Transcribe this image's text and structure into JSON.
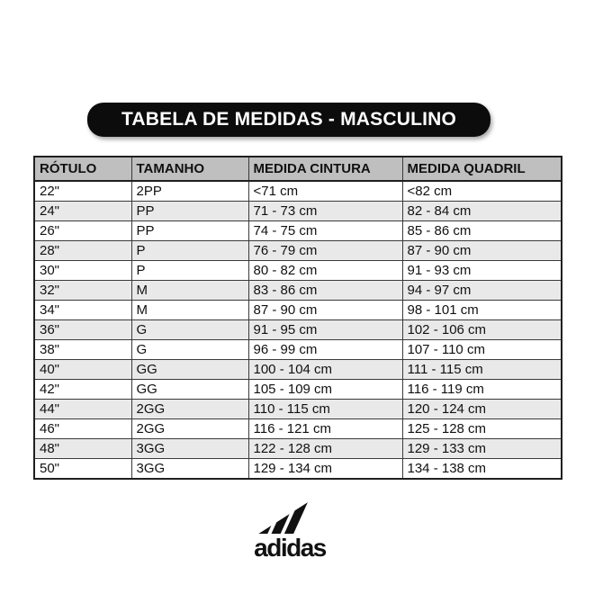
{
  "banner": {
    "title": "TABELA DE MEDIDAS - MASCULINO"
  },
  "chart_data": {
    "type": "table",
    "title": "TABELA DE MEDIDAS - MASCULINO",
    "columns": [
      "RÓTULO",
      "TAMANHO",
      "MEDIDA CINTURA",
      "MEDIDA QUADRIL"
    ],
    "rows": [
      [
        "22\"",
        "2PP",
        "<71 cm",
        "<82 cm"
      ],
      [
        "24\"",
        "PP",
        "71 - 73 cm",
        "82 - 84 cm"
      ],
      [
        "26\"",
        "PP",
        "74 - 75 cm",
        "85 - 86 cm"
      ],
      [
        "28\"",
        "P",
        "76 - 79 cm",
        "87 - 90 cm"
      ],
      [
        "30\"",
        "P",
        "80 - 82 cm",
        "91 - 93 cm"
      ],
      [
        "32\"",
        "M",
        "83 - 86 cm",
        "94 - 97 cm"
      ],
      [
        "34\"",
        "M",
        "87 - 90 cm",
        "98 - 101 cm"
      ],
      [
        "36\"",
        "G",
        "91 - 95 cm",
        "102 - 106 cm"
      ],
      [
        "38\"",
        "G",
        "96 - 99 cm",
        "107 - 110 cm"
      ],
      [
        "40\"",
        "GG",
        "100 - 104 cm",
        "111 - 115 cm"
      ],
      [
        "42\"",
        "GG",
        "105 - 109 cm",
        "116 - 119 cm"
      ],
      [
        "44\"",
        "2GG",
        "110 - 115 cm",
        "120 - 124 cm"
      ],
      [
        "46\"",
        "2GG",
        "116 - 121 cm",
        "125 - 128 cm"
      ],
      [
        "48\"",
        "3GG",
        "122 - 128 cm",
        "129 - 133 cm"
      ],
      [
        "50\"",
        "3GG",
        "129 - 134 cm",
        "134 - 138 cm"
      ]
    ],
    "layout": {
      "header_row": true,
      "zebra_striping": true,
      "alt_rows_start_index": 1
    }
  },
  "brand": {
    "wordmark": "adidas",
    "logo_icon": "adidas-three-stripes"
  },
  "colors": {
    "banner_bg": "#0c0c0c",
    "banner_text": "#ffffff",
    "header_bg": "#bfbfbf",
    "row_bg": "#ffffff",
    "row_alt_bg": "#e9e9e9",
    "table_border": "#1f1f1f",
    "logo": "#111111"
  }
}
